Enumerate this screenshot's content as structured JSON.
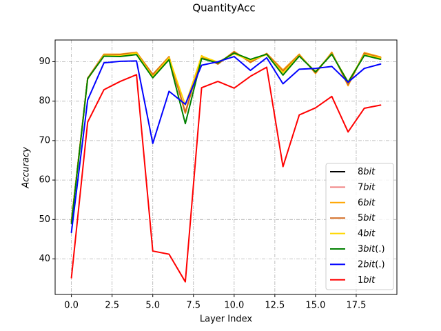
{
  "chart_data": {
    "type": "line",
    "title": "QuantityAcc",
    "xlabel": "Layer Index",
    "ylabel": "Accuracy",
    "xlim": [
      -1,
      20
    ],
    "ylim": [
      31,
      95.5
    ],
    "xticks": [
      0.0,
      2.5,
      5.0,
      7.5,
      10.0,
      12.5,
      15.0,
      17.5
    ],
    "xtick_labels": [
      "0.0",
      "2.5",
      "5.0",
      "7.5",
      "10.0",
      "12.5",
      "15.0",
      "17.5"
    ],
    "yticks": [
      40,
      50,
      60,
      70,
      80,
      90
    ],
    "ytick_labels": [
      "40",
      "50",
      "60",
      "70",
      "80",
      "90"
    ],
    "grid": true,
    "legend_position": "lower-right",
    "x": [
      0,
      1,
      2,
      3,
      4,
      5,
      6,
      7,
      8,
      9,
      10,
      11,
      12,
      13,
      14,
      15,
      16,
      17,
      18,
      19
    ],
    "series": [
      {
        "name": "8bit",
        "label_base": "8",
        "label_suffix": "",
        "color": "#000000",
        "values": [
          49.5,
          85.8,
          91.8,
          91.7,
          92.3,
          86.5,
          91.2,
          77.0,
          91.3,
          89.5,
          92.5,
          90.0,
          92.0,
          87.5,
          91.7,
          87.3,
          92.2,
          84.5,
          92.0,
          91.0
        ]
      },
      {
        "name": "7bit",
        "label_base": "7",
        "label_suffix": "",
        "color": "#f08080",
        "values": [
          49.5,
          85.8,
          91.8,
          91.7,
          92.3,
          86.5,
          91.2,
          77.0,
          91.3,
          89.5,
          92.5,
          90.0,
          92.0,
          87.5,
          91.7,
          87.3,
          92.2,
          84.5,
          92.0,
          91.0
        ]
      },
      {
        "name": "6bit",
        "label_base": "6",
        "label_suffix": "",
        "color": "#ffa500",
        "values": [
          49.5,
          85.8,
          91.9,
          91.9,
          92.4,
          86.8,
          91.3,
          77.0,
          91.5,
          89.4,
          92.6,
          89.8,
          92.1,
          87.9,
          91.9,
          87.0,
          92.4,
          83.9,
          92.3,
          91.2
        ]
      },
      {
        "name": "5bit",
        "label_base": "5",
        "label_suffix": "",
        "color": "#d2691e",
        "values": [
          49.5,
          85.8,
          91.8,
          91.8,
          92.3,
          86.7,
          91.2,
          77.2,
          91.3,
          89.4,
          92.5,
          89.9,
          92.0,
          87.6,
          91.7,
          87.2,
          92.2,
          84.2,
          92.1,
          91.0
        ]
      },
      {
        "name": "4bit",
        "label_base": "4",
        "label_suffix": "",
        "color": "#ffd700",
        "values": [
          49.5,
          85.6,
          91.6,
          91.5,
          92.2,
          86.2,
          91.0,
          79.0,
          91.4,
          89.9,
          92.0,
          90.3,
          91.8,
          87.2,
          91.5,
          87.5,
          92.0,
          84.9,
          91.8,
          90.9
        ]
      },
      {
        "name": "3bit(.)",
        "label_base": "3",
        "label_suffix": "(.)",
        "color": "#008000",
        "values": [
          49.0,
          85.7,
          91.4,
          91.3,
          91.8,
          85.9,
          90.5,
          74.3,
          90.8,
          89.7,
          92.2,
          90.6,
          91.9,
          86.6,
          91.4,
          87.4,
          91.9,
          84.8,
          91.6,
          90.6
        ]
      },
      {
        "name": "2bit(.)",
        "label_base": "2",
        "label_suffix": "(.)",
        "color": "#0000ff",
        "values": [
          46.7,
          80.3,
          89.7,
          90.1,
          90.2,
          69.3,
          82.5,
          79.2,
          89.1,
          90.0,
          91.3,
          87.8,
          91.0,
          84.4,
          88.1,
          88.3,
          88.8,
          84.8,
          88.3,
          89.4
        ]
      },
      {
        "name": "1bit",
        "label_base": "1",
        "label_suffix": "",
        "color": "#ff0000",
        "values": [
          35.2,
          74.7,
          82.9,
          85.0,
          86.7,
          42.0,
          41.2,
          34.2,
          83.4,
          85.0,
          83.3,
          86.3,
          88.6,
          63.4,
          76.5,
          78.3,
          81.2,
          72.2,
          78.2,
          79.0
        ]
      }
    ]
  }
}
